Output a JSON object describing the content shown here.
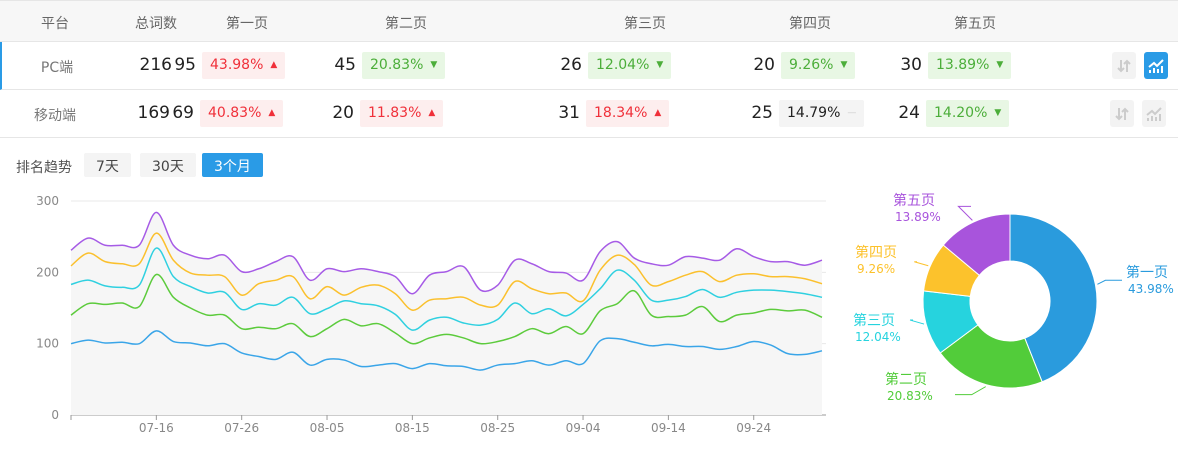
{
  "table": {
    "headers": [
      "平台",
      "总词数",
      "第一页",
      "第二页",
      "第三页",
      "第四页",
      "第五页"
    ],
    "rows": [
      {
        "platform": "PC端",
        "total": "216",
        "selected": true,
        "pages": [
          {
            "count": "95",
            "pct": "43.98%",
            "trend": "up"
          },
          {
            "count": "45",
            "pct": "20.83%",
            "trend": "down"
          },
          {
            "count": "26",
            "pct": "12.04%",
            "trend": "down"
          },
          {
            "count": "20",
            "pct": "9.26%",
            "trend": "down"
          },
          {
            "count": "30",
            "pct": "13.89%",
            "trend": "down"
          }
        ]
      },
      {
        "platform": "移动端",
        "total": "169",
        "selected": false,
        "pages": [
          {
            "count": "69",
            "pct": "40.83%",
            "trend": "up"
          },
          {
            "count": "20",
            "pct": "11.83%",
            "trend": "up"
          },
          {
            "count": "31",
            "pct": "18.34%",
            "trend": "up"
          },
          {
            "count": "25",
            "pct": "14.79%",
            "trend": "flat"
          },
          {
            "count": "24",
            "pct": "14.20%",
            "trend": "down"
          }
        ]
      }
    ],
    "row_icons": [
      "sort-icon",
      "trend-chart-icon"
    ]
  },
  "trend": {
    "label": "排名趋势",
    "ranges": [
      "7天",
      "30天",
      "3个月"
    ],
    "active": "3个月"
  },
  "colors": {
    "up": "#f0303a",
    "down": "#4cae3a",
    "accent": "#2a9be6"
  },
  "chart_data": [
    {
      "type": "line",
      "stacked": true,
      "area": true,
      "x": [
        "07-06",
        "07-08",
        "07-10",
        "07-12",
        "07-14",
        "07-16",
        "07-18",
        "07-20",
        "07-22",
        "07-24",
        "07-26",
        "07-28",
        "07-30",
        "08-01",
        "08-03",
        "08-05",
        "08-07",
        "08-09",
        "08-11",
        "08-13",
        "08-15",
        "08-17",
        "08-19",
        "08-21",
        "08-23",
        "08-25",
        "08-27",
        "08-29",
        "08-31",
        "09-02",
        "09-04",
        "09-06",
        "09-08",
        "09-10",
        "09-12",
        "09-14",
        "09-16",
        "09-18",
        "09-20",
        "09-22",
        "09-24",
        "09-26",
        "09-28",
        "09-30",
        "10-02"
      ],
      "xticks": [
        "07-16",
        "07-26",
        "08-05",
        "08-15",
        "08-25",
        "09-04",
        "09-14",
        "09-24"
      ],
      "yticks": [
        0,
        100,
        200,
        300
      ],
      "ylim": [
        0,
        300
      ],
      "grid": true,
      "series": [
        {
          "color": "#3aa5e8",
          "values": [
            100,
            105,
            101,
            102,
            100,
            118,
            103,
            101,
            97,
            100,
            87,
            82,
            78,
            88,
            70,
            78,
            77,
            68,
            70,
            72,
            65,
            72,
            69,
            68,
            63,
            70,
            72,
            76,
            70,
            76,
            72,
            104,
            107,
            102,
            97,
            99,
            96,
            96,
            92,
            96,
            103,
            98,
            86,
            85,
            90
          ]
        },
        {
          "color": "#5ccb3c",
          "values": [
            40,
            51,
            54,
            55,
            52,
            79,
            62,
            49,
            43,
            40,
            34,
            41,
            43,
            40,
            40,
            43,
            57,
            57,
            58,
            43,
            35,
            36,
            44,
            40,
            37,
            33,
            38,
            45,
            44,
            48,
            42,
            42,
            49,
            72,
            43,
            39,
            44,
            56,
            39,
            44,
            40,
            50,
            60,
            62,
            47
          ]
        },
        {
          "color": "#2fd0e0",
          "values": [
            43,
            33,
            26,
            22,
            30,
            37,
            29,
            30,
            31,
            32,
            27,
            33,
            33,
            37,
            32,
            28,
            26,
            31,
            25,
            26,
            19,
            25,
            24,
            21,
            26,
            31,
            47,
            21,
            35,
            15,
            41,
            31,
            47,
            15,
            21,
            23,
            26,
            24,
            34,
            32,
            32,
            27,
            27,
            23,
            28
          ]
        },
        {
          "color": "#fbc02d",
          "values": [
            26,
            38,
            34,
            33,
            30,
            21,
            23,
            19,
            25,
            22,
            20,
            28,
            35,
            29,
            21,
            31,
            8,
            23,
            29,
            29,
            28,
            28,
            26,
            36,
            28,
            20,
            30,
            35,
            21,
            32,
            5,
            26,
            21,
            22,
            21,
            26,
            30,
            25,
            22,
            24,
            23,
            19,
            21,
            21,
            19
          ]
        },
        {
          "color": "#a65be6",
          "values": [
            22,
            21,
            23,
            26,
            26,
            29,
            21,
            25,
            23,
            30,
            33,
            21,
            26,
            28,
            26,
            25,
            33,
            26,
            19,
            24,
            23,
            35,
            38,
            43,
            21,
            28,
            30,
            35,
            31,
            28,
            29,
            26,
            19,
            9,
            30,
            23,
            26,
            19,
            30,
            37,
            24,
            21,
            21,
            19,
            33
          ]
        }
      ]
    },
    {
      "type": "pie",
      "donut": true,
      "slices": [
        {
          "label": "第一页",
          "value": 43.98,
          "text": "43.98%",
          "color": "#2a9bdd"
        },
        {
          "label": "第二页",
          "value": 20.83,
          "text": "20.83%",
          "color": "#52cc3a"
        },
        {
          "label": "第三页",
          "value": 12.04,
          "text": "12.04%",
          "color": "#26d3de"
        },
        {
          "label": "第四页",
          "value": 9.26,
          "text": "9.26%",
          "color": "#fcc22c"
        },
        {
          "label": "第五页",
          "value": 13.89,
          "text": "13.89%",
          "color": "#a854dc"
        }
      ]
    }
  ]
}
